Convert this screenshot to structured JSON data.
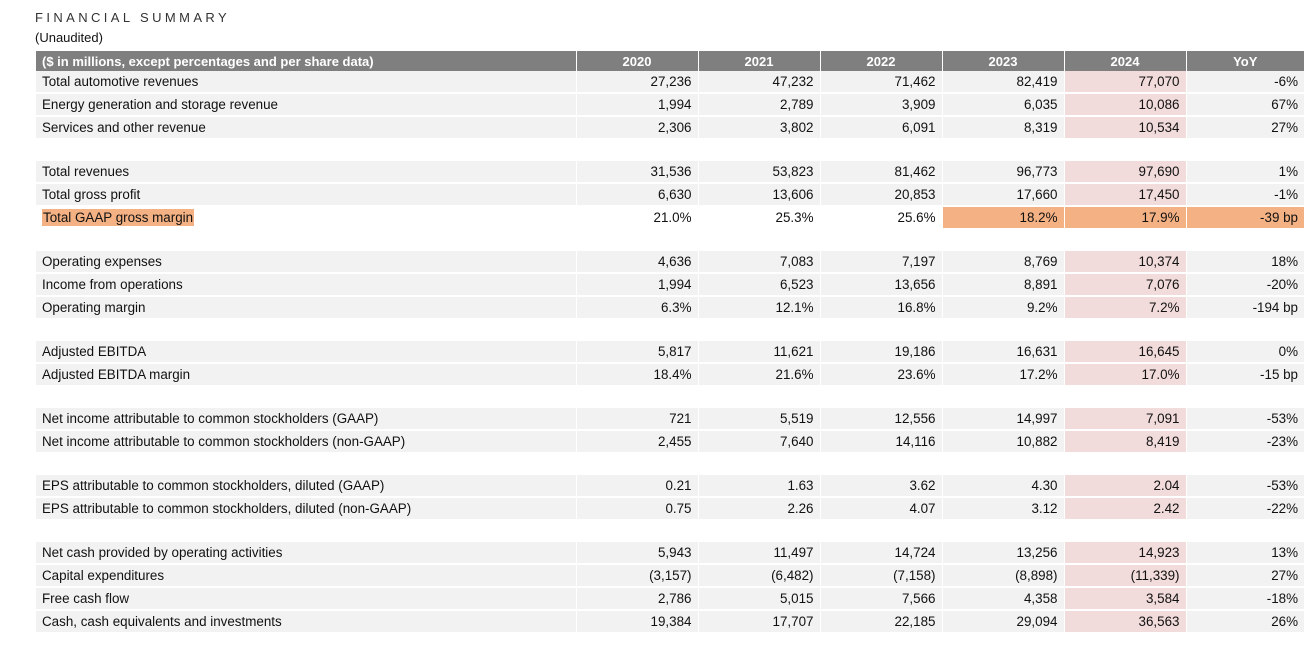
{
  "header": {
    "title": "FINANCIAL SUMMARY",
    "subtitle": "(Unaudited)"
  },
  "table": {
    "columns": [
      "($ in millions, except percentages and per share data)",
      "2020",
      "2021",
      "2022",
      "2023",
      "2024",
      "YoY"
    ],
    "groups": [
      [
        {
          "label": "Total automotive revenues",
          "values": [
            "27,236",
            "47,232",
            "71,462",
            "82,419",
            "77,070",
            "-6%"
          ]
        },
        {
          "label": "Energy generation and storage revenue",
          "values": [
            "1,994",
            "2,789",
            "3,909",
            "6,035",
            "10,086",
            "67%"
          ]
        },
        {
          "label": "Services and other revenue",
          "values": [
            "2,306",
            "3,802",
            "6,091",
            "8,319",
            "10,534",
            "27%"
          ]
        }
      ],
      [
        {
          "label": "Total revenues",
          "values": [
            "31,536",
            "53,823",
            "81,462",
            "96,773",
            "97,690",
            "1%"
          ]
        },
        {
          "label": "Total gross profit",
          "values": [
            "6,630",
            "13,606",
            "20,853",
            "17,660",
            "17,450",
            "-1%"
          ]
        },
        {
          "label": "Total GAAP gross margin",
          "values": [
            "21.0%",
            "25.3%",
            "25.6%",
            "18.2%",
            "17.9%",
            "-39 bp"
          ],
          "highlight": true
        }
      ],
      [
        {
          "label": "Operating expenses",
          "values": [
            "4,636",
            "7,083",
            "7,197",
            "8,769",
            "10,374",
            "18%"
          ]
        },
        {
          "label": "Income from operations",
          "values": [
            "1,994",
            "6,523",
            "13,656",
            "8,891",
            "7,076",
            "-20%"
          ]
        },
        {
          "label": "Operating margin",
          "values": [
            "6.3%",
            "12.1%",
            "16.8%",
            "9.2%",
            "7.2%",
            "-194 bp"
          ]
        }
      ],
      [
        {
          "label": "Adjusted EBITDA",
          "values": [
            "5,817",
            "11,621",
            "19,186",
            "16,631",
            "16,645",
            "0%"
          ]
        },
        {
          "label": "Adjusted EBITDA margin",
          "values": [
            "18.4%",
            "21.6%",
            "23.6%",
            "17.2%",
            "17.0%",
            "-15 bp"
          ]
        }
      ],
      [
        {
          "label": "Net income attributable to common stockholders (GAAP)",
          "values": [
            "721",
            "5,519",
            "12,556",
            "14,997",
            "7,091",
            "-53%"
          ]
        },
        {
          "label": "Net income attributable to common stockholders (non-GAAP)",
          "values": [
            "2,455",
            "7,640",
            "14,116",
            "10,882",
            "8,419",
            "-23%"
          ]
        }
      ],
      [
        {
          "label": "EPS attributable to common stockholders, diluted (GAAP)",
          "values": [
            "0.21",
            "1.63",
            "3.62",
            "4.30",
            "2.04",
            "-53%"
          ]
        },
        {
          "label": "EPS attributable to common stockholders, diluted (non-GAAP)",
          "values": [
            "0.75",
            "2.26",
            "4.07",
            "3.12",
            "2.42",
            "-22%"
          ]
        }
      ],
      [
        {
          "label": "Net cash provided by operating activities",
          "values": [
            "5,943",
            "11,497",
            "14,724",
            "13,256",
            "14,923",
            "13%"
          ]
        },
        {
          "label": "Capital expenditures",
          "values": [
            "(3,157)",
            "(6,482)",
            "(7,158)",
            "(8,898)",
            "(11,339)",
            "27%"
          ]
        },
        {
          "label": "Free cash flow",
          "values": [
            "2,786",
            "5,015",
            "7,566",
            "4,358",
            "3,584",
            "-18%"
          ]
        },
        {
          "label": "Cash, cash equivalents and investments",
          "values": [
            "19,384",
            "17,707",
            "22,185",
            "29,094",
            "36,563",
            "26%"
          ]
        }
      ]
    ]
  }
}
